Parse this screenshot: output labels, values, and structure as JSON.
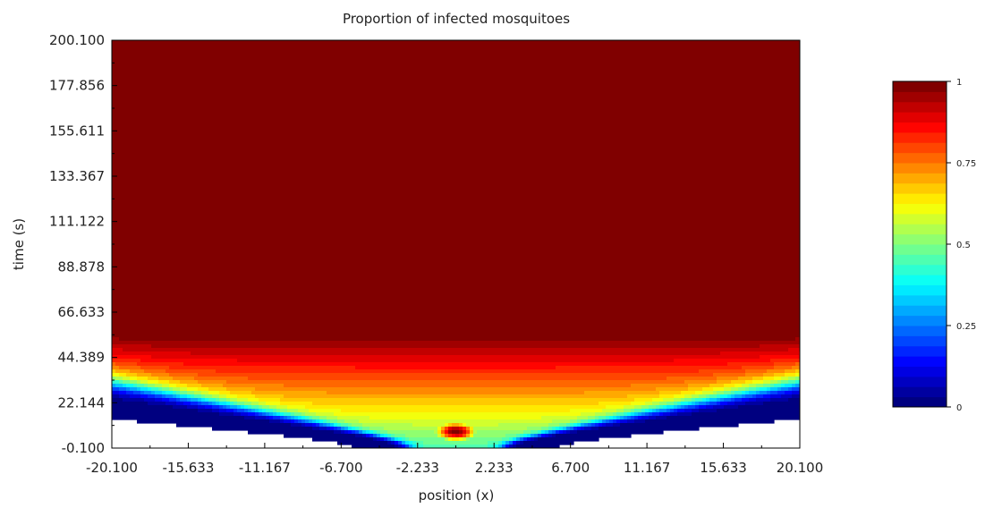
{
  "chart_data": {
    "type": "heatmap",
    "title": "Proportion of infected mosquitoes",
    "xlabel": "position (x)",
    "ylabel": "time (s)",
    "xlim": [
      -20.1,
      20.1
    ],
    "ylim": [
      -0.1,
      200.1
    ],
    "x_ticks": [
      "-20.100",
      "-15.633",
      "-11.167",
      "-6.700",
      "-2.233",
      "2.233",
      "6.700",
      "11.167",
      "15.633",
      "20.100"
    ],
    "y_ticks": [
      "-0.100",
      "22.144",
      "44.389",
      "66.633",
      "88.878",
      "111.122",
      "133.367",
      "155.611",
      "177.856",
      "200.100"
    ],
    "colorbar": {
      "min": 0,
      "max": 1,
      "ticks": [
        "0",
        "0.25",
        "0.5",
        "0.75",
        "1"
      ],
      "levels": 32,
      "colormap": "jet"
    },
    "field": {
      "description_of_shape": "wedge-shaped traveling wave spreading from x=0 at t=0; core value 1, decaying to 0 at edges",
      "core_center_x": 0,
      "front_speed": 1.35,
      "initial_blob": {
        "x": 0,
        "t": 8,
        "value": 1
      }
    }
  }
}
